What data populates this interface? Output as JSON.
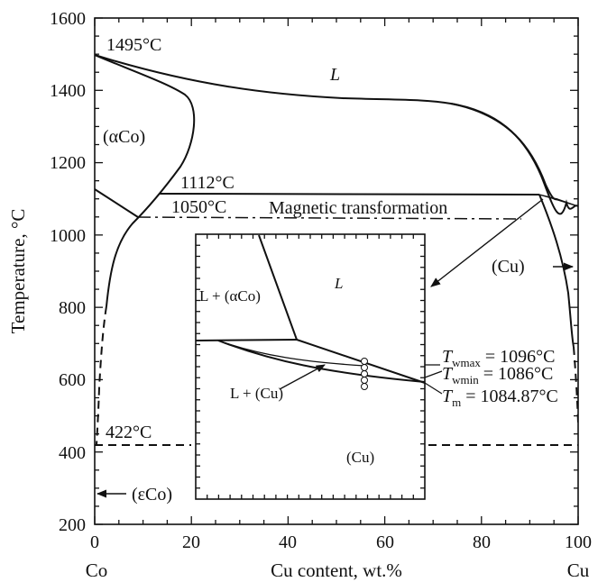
{
  "chart_data": {
    "type": "phase-diagram",
    "ylabel": "Temperature, °C",
    "xlabel": "Cu content, wt.%",
    "x_end_labels": {
      "left": "Co",
      "right": "Cu"
    },
    "xlim": [
      0,
      100
    ],
    "ylim": [
      200,
      1600
    ],
    "xticks": [
      "0",
      "20",
      "40",
      "60",
      "80",
      "100"
    ],
    "yticks": [
      "200",
      "400",
      "600",
      "800",
      "1000",
      "1200",
      "1400",
      "1600"
    ],
    "regions": {
      "liquid": "L",
      "alpha_co": "(αCo)",
      "copper": "(Cu)",
      "epsilon_co": "(εCo)"
    },
    "temperatures": {
      "co_melting": "1495°C",
      "peritectic": "1112°C",
      "magnetic": "1050°C",
      "allotropic": "422°C"
    },
    "annotation": "Magnetic transformation",
    "liquidus": [
      [
        0,
        1495
      ],
      [
        10,
        1440
      ],
      [
        20,
        1400
      ],
      [
        30,
        1388
      ],
      [
        40,
        1380
      ],
      [
        50,
        1377
      ],
      [
        60,
        1375
      ],
      [
        68,
        1370
      ],
      [
        75,
        1350
      ],
      [
        82,
        1300
      ],
      [
        88,
        1230
      ],
      [
        92,
        1160
      ],
      [
        95,
        1120
      ],
      [
        100,
        1085
      ]
    ],
    "alpha_co_solidus": [
      [
        0,
        1495
      ],
      [
        6,
        1460
      ],
      [
        12,
        1420
      ],
      [
        16,
        1395
      ],
      [
        19,
        1380
      ],
      [
        20,
        1355
      ],
      [
        19.5,
        1305
      ],
      [
        17,
        1220
      ],
      [
        13,
        1120
      ],
      [
        9,
        1050
      ],
      [
        5,
        965
      ],
      [
        3,
        880
      ],
      [
        2,
        800
      ]
    ],
    "co_solvus": [
      [
        0,
        1125
      ],
      [
        9,
        1050
      ]
    ],
    "peritectic_line": [
      [
        13,
        1112
      ],
      [
        94,
        1108
      ]
    ],
    "magnetic_line": [
      [
        9,
        1050
      ],
      [
        95,
        1045
      ]
    ],
    "cu_solidus": [
      [
        93,
        1112
      ],
      [
        96,
        1020
      ],
      [
        98,
        900
      ],
      [
        100,
        800
      ]
    ],
    "allotropic_line": [
      [
        0,
        422
      ],
      [
        100,
        422
      ]
    ],
    "inset": {
      "labels": {
        "liquid": "L",
        "l_alpha": "L + (αCo)",
        "l_cu": "L + (Cu)",
        "copper": "(Cu)"
      },
      "readouts": [
        {
          "symbol": "T",
          "sub": "wmax",
          "value": " = 1096°C"
        },
        {
          "symbol": "T",
          "sub": "wmin",
          "value": " = 1086°C"
        },
        {
          "symbol": "T",
          "sub": "m",
          "value": " = 1084.87°C"
        }
      ]
    }
  }
}
